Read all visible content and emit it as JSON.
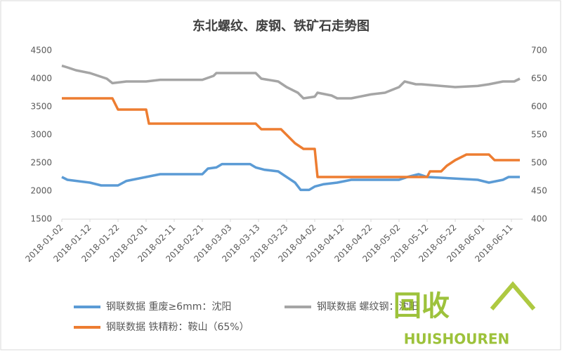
{
  "chart_data": {
    "type": "line",
    "title": "东北螺纹、废钢、铁矿石走势图",
    "xlim": [
      "2018-01-02",
      "2018-06-15"
    ],
    "xticks": [
      "2018-01-02",
      "2018-01-12",
      "2018-01-22",
      "2018-02-01",
      "2018-02-11",
      "2018-02-21",
      "2018-03-03",
      "2018-03-13",
      "2018-03-23",
      "2018-04-02",
      "2018-04-12",
      "2018-04-22",
      "2018-05-02",
      "2018-05-12",
      "2018-05-22",
      "2018-06-01",
      "2018-06-11"
    ],
    "ylim": [
      1500,
      4500
    ],
    "yticks": [
      1500,
      2000,
      2500,
      3000,
      3500,
      4000,
      4500
    ],
    "y2lim": [
      400,
      700
    ],
    "y2ticks": [
      400,
      450,
      500,
      550,
      600,
      650,
      700
    ],
    "grid": false,
    "series": [
      {
        "name": "钢联数据 重废≥6mm：沈阳",
        "color": "#5b9bd5",
        "x": [
          "2018-01-02",
          "2018-01-04",
          "2018-01-12",
          "2018-01-16",
          "2018-01-22",
          "2018-01-25",
          "2018-01-27",
          "2018-02-01",
          "2018-02-03",
          "2018-02-06",
          "2018-02-21",
          "2018-02-23",
          "2018-02-26",
          "2018-02-28",
          "2018-03-10",
          "2018-03-12",
          "2018-03-15",
          "2018-03-20",
          "2018-03-23",
          "2018-03-26",
          "2018-03-28",
          "2018-03-31",
          "2018-04-02",
          "2018-04-05",
          "2018-04-10",
          "2018-04-15",
          "2018-05-02",
          "2018-05-05",
          "2018-05-09",
          "2018-05-12",
          "2018-05-30",
          "2018-06-03",
          "2018-06-08",
          "2018-06-10",
          "2018-06-14"
        ],
        "values": [
          2250,
          2200,
          2150,
          2100,
          2100,
          2180,
          2200,
          2250,
          2270,
          2300,
          2300,
          2400,
          2420,
          2480,
          2480,
          2420,
          2380,
          2350,
          2250,
          2150,
          2020,
          2020,
          2080,
          2120,
          2150,
          2200,
          2200,
          2250,
          2300,
          2250,
          2200,
          2150,
          2200,
          2250,
          2250
        ]
      },
      {
        "name": "钢联数据 螺纹钢：沈阳",
        "color": "#a5a5a5",
        "x": [
          "2018-01-02",
          "2018-01-04",
          "2018-01-07",
          "2018-01-12",
          "2018-01-15",
          "2018-01-18",
          "2018-01-20",
          "2018-01-25",
          "2018-02-01",
          "2018-02-06",
          "2018-02-21",
          "2018-02-25",
          "2018-02-26",
          "2018-03-12",
          "2018-03-14",
          "2018-03-20",
          "2018-03-23",
          "2018-03-27",
          "2018-03-29",
          "2018-04-02",
          "2018-04-03",
          "2018-04-08",
          "2018-04-10",
          "2018-04-15",
          "2018-04-20",
          "2018-04-22",
          "2018-04-27",
          "2018-05-02",
          "2018-05-04",
          "2018-05-08",
          "2018-05-10",
          "2018-05-22",
          "2018-05-30",
          "2018-06-03",
          "2018-06-08",
          "2018-06-12",
          "2018-06-14"
        ],
        "values": [
          4230,
          4200,
          4150,
          4100,
          4050,
          4000,
          3920,
          3950,
          3950,
          3980,
          3980,
          4050,
          4100,
          4100,
          4000,
          3950,
          3850,
          3750,
          3650,
          3680,
          3750,
          3700,
          3650,
          3650,
          3700,
          3720,
          3750,
          3850,
          3950,
          3900,
          3900,
          3850,
          3870,
          3900,
          3950,
          3950,
          4000
        ]
      },
      {
        "name": "钢联数据 铁精粉：鞍山（65%）",
        "color": "#ed7d31",
        "axis": "y2",
        "x": [
          "2018-01-02",
          "2018-01-20",
          "2018-01-22",
          "2018-02-01",
          "2018-02-02",
          "2018-03-12",
          "2018-03-14",
          "2018-03-21",
          "2018-03-24",
          "2018-03-26",
          "2018-03-29",
          "2018-04-02",
          "2018-04-03",
          "2018-05-12",
          "2018-05-13",
          "2018-05-17",
          "2018-05-19",
          "2018-05-22",
          "2018-05-26",
          "2018-06-03",
          "2018-06-05",
          "2018-06-14"
        ],
        "values": [
          615,
          615,
          595,
          595,
          570,
          570,
          560,
          560,
          545,
          535,
          525,
          525,
          475,
          475,
          485,
          485,
          495,
          505,
          515,
          515,
          505,
          505
        ]
      }
    ]
  },
  "watermark": {
    "icon_text": "回收",
    "brand": "HUISHOUREN"
  }
}
